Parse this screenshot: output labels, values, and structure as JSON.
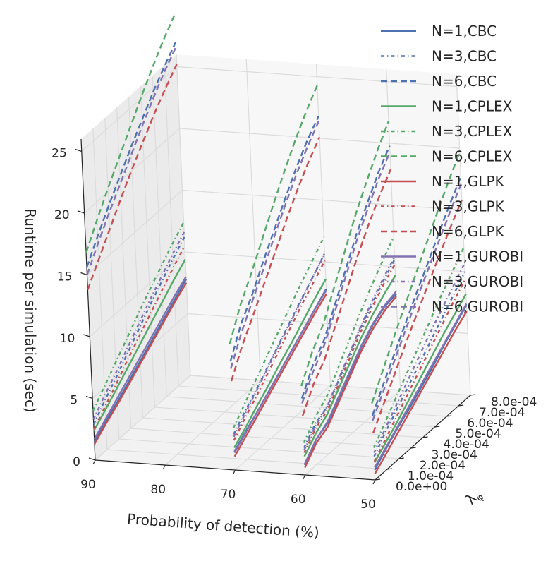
{
  "chart_data": {
    "type": "line",
    "projection": "3d",
    "title": "",
    "xlabel": "Probability of detection (%)",
    "ylabel": "λ_φ",
    "zlabel": "Runtime per simulation (sec)",
    "x_ticks": [
      "90",
      "80",
      "70",
      "60",
      "50"
    ],
    "y_ticks": [
      "0.0e+00",
      "1.0e-04",
      "2.0e-04",
      "3.0e-04",
      "4.0e-04",
      "5.0e-04",
      "6.0e-04",
      "7.0e-04",
      "8.0e-04"
    ],
    "z_ticks": [
      "0",
      "5",
      "10",
      "15",
      "20",
      "25"
    ],
    "xlim": [
      90,
      50
    ],
    "ylim": [
      0,
      0.0008
    ],
    "zlim": [
      0,
      26
    ],
    "grid": true,
    "legend_position": "top-right",
    "lambda_values": [
      0,
      0.0001,
      0.0002,
      0.0003,
      0.0004,
      0.0005,
      0.0006,
      0.0007,
      0.0008
    ],
    "series": [
      {
        "name": "N=1,CBC",
        "color": "#4c72b0",
        "dash": "solid",
        "groups": [
          {
            "pd": 90,
            "runtime": [
              1.5,
              2.3,
              3.0,
              3.8,
              4.6,
              5.4,
              6.2,
              7.0,
              7.8
            ]
          },
          {
            "pd": 70,
            "runtime": [
              1.5,
              2.3,
              3.0,
              3.8,
              4.6,
              5.4,
              6.2,
              7.0,
              7.8
            ]
          },
          {
            "pd": 60,
            "runtime": [
              0.8,
              2.0,
              2.5,
              3.7,
              4.9,
              6.1,
              7.0,
              7.6,
              7.8
            ]
          },
          {
            "pd": 50,
            "runtime": [
              0.8,
              1.7,
              2.5,
              3.2,
              4.0,
              4.8,
              5.7,
              6.5,
              7.3
            ]
          }
        ]
      },
      {
        "name": "N=3,CBC",
        "color": "#4c72b0",
        "dash": "dashdot",
        "groups": [
          {
            "pd": 90,
            "runtime": [
              2.9,
              4.0,
              5.0,
              6.1,
              7.2,
              8.3,
              9.3,
              10.3,
              11.2
            ]
          },
          {
            "pd": 70,
            "runtime": [
              2.9,
              3.9,
              4.8,
              5.8,
              6.8,
              7.8,
              8.8,
              9.7,
              10.7
            ]
          },
          {
            "pd": 60,
            "runtime": [
              2.2,
              3.3,
              3.8,
              5.0,
              6.3,
              7.6,
              8.7,
              9.7,
              10.6
            ]
          },
          {
            "pd": 50,
            "runtime": [
              1.9,
              3.0,
              4.0,
              5.0,
              6.0,
              7.0,
              8.0,
              9.0,
              10.0
            ]
          }
        ]
      },
      {
        "name": "N=6,CBC",
        "color": "#4c72b0",
        "dash": "dashed",
        "groups": [
          {
            "pd": 90,
            "runtime": [
              15.6,
              17.3,
              18.9,
              20.4,
              21.9,
              23.3,
              24.7,
              25.9,
              27.0
            ]
          },
          {
            "pd": 70,
            "runtime": [
              8.8,
              11.0,
              12.5,
              14.3,
              16.0,
              17.7,
              19.3,
              20.7,
              21.8
            ]
          },
          {
            "pd": 60,
            "runtime": [
              6.2,
              8.0,
              9.2,
              11.2,
              13.2,
              15.2,
              16.9,
              18.5,
              19.8
            ]
          },
          {
            "pd": 50,
            "runtime": [
              5.2,
              6.9,
              8.5,
              10.1,
              11.7,
              13.2,
              14.8,
              16.3,
              17.7
            ]
          }
        ]
      },
      {
        "name": "N=1,CPLEX",
        "color": "#55a868",
        "dash": "solid",
        "groups": [
          {
            "pd": 90,
            "runtime": [
              2.4,
              3.2,
              4.1,
              5.0,
              5.9,
              6.8,
              7.7,
              8.6,
              9.4
            ]
          },
          {
            "pd": 70,
            "runtime": [
              1.8,
              2.6,
              3.5,
              4.3,
              5.2,
              6.0,
              6.9,
              7.8,
              8.6
            ]
          },
          {
            "pd": 60,
            "runtime": [
              1.5,
              2.5,
              3.2,
              4.4,
              5.6,
              6.8,
              7.8,
              8.6,
              9.3
            ]
          },
          {
            "pd": 50,
            "runtime": [
              1.4,
              2.2,
              3.0,
              3.9,
              4.8,
              5.7,
              6.6,
              7.4,
              8.2
            ]
          }
        ]
      },
      {
        "name": "N=3,CPLEX",
        "color": "#55a868",
        "dash": "dashdot",
        "groups": [
          {
            "pd": 90,
            "runtime": [
              4.0,
              5.1,
              6.2,
              7.3,
              8.4,
              9.5,
              10.5,
              11.5,
              12.4
            ]
          },
          {
            "pd": 70,
            "runtime": [
              3.4,
              4.5,
              5.6,
              6.7,
              7.8,
              8.9,
              10.0,
              11.0,
              12.0
            ]
          },
          {
            "pd": 60,
            "runtime": [
              2.6,
              3.8,
              4.6,
              6.0,
              7.4,
              8.8,
              10.1,
              11.3,
              12.4
            ]
          },
          {
            "pd": 50,
            "runtime": [
              2.6,
              3.8,
              5.0,
              6.2,
              7.4,
              8.6,
              9.8,
              10.9,
              12.0
            ]
          }
        ]
      },
      {
        "name": "N=6,CPLEX",
        "color": "#55a868",
        "dash": "dashed",
        "groups": [
          {
            "pd": 90,
            "runtime": [
              16.8,
              18.6,
              20.3,
              21.9,
              23.5,
              25.1,
              26.6,
              28.0,
              29.2
            ]
          },
          {
            "pd": 70,
            "runtime": [
              10.2,
              12.5,
              14.2,
              16.1,
              18.0,
              19.8,
              21.5,
              23.0,
              24.3
            ]
          },
          {
            "pd": 60,
            "runtime": [
              7.2,
              9.1,
              10.5,
              12.6,
              14.7,
              16.8,
              18.6,
              20.3,
              21.8
            ]
          },
          {
            "pd": 50,
            "runtime": [
              6.2,
              8.0,
              9.8,
              11.5,
              13.2,
              14.9,
              16.6,
              18.2,
              19.7
            ]
          }
        ]
      },
      {
        "name": "N=1,GLPK",
        "color": "#c44e52",
        "dash": "solid",
        "groups": [
          {
            "pd": 90,
            "runtime": [
              1.3,
              2.1,
              2.8,
              3.6,
              4.4,
              5.2,
              6.0,
              6.8,
              7.5
            ]
          },
          {
            "pd": 70,
            "runtime": [
              1.1,
              1.9,
              2.7,
              3.5,
              4.3,
              5.1,
              5.9,
              6.7,
              7.4
            ]
          },
          {
            "pd": 60,
            "runtime": [
              0.6,
              1.7,
              2.2,
              3.4,
              4.6,
              5.8,
              6.7,
              7.3,
              7.6
            ]
          },
          {
            "pd": 50,
            "runtime": [
              0.5,
              1.3,
              2.1,
              2.9,
              3.7,
              4.5,
              5.3,
              6.1,
              6.8
            ]
          }
        ]
      },
      {
        "name": "N=3,GLPK",
        "color": "#c44e52",
        "dash": "dashdot",
        "groups": [
          {
            "pd": 90,
            "runtime": [
              2.5,
              3.5,
              4.5,
              5.6,
              6.6,
              7.6,
              8.6,
              9.6,
              10.5
            ]
          },
          {
            "pd": 70,
            "runtime": [
              2.4,
              3.4,
              4.3,
              5.3,
              6.3,
              7.3,
              8.3,
              9.2,
              10.1
            ]
          },
          {
            "pd": 60,
            "runtime": [
              1.8,
              2.9,
              3.5,
              4.7,
              6.0,
              7.3,
              8.4,
              9.4,
              10.2
            ]
          },
          {
            "pd": 50,
            "runtime": [
              1.5,
              2.5,
              3.5,
              4.5,
              5.5,
              6.5,
              7.5,
              8.5,
              9.4
            ]
          }
        ]
      },
      {
        "name": "N=6,GLPK",
        "color": "#c44e52",
        "dash": "dashed",
        "groups": [
          {
            "pd": 90,
            "runtime": [
              13.8,
              15.4,
              17.0,
              18.6,
              20.1,
              21.5,
              22.9,
              24.1,
              25.2
            ]
          },
          {
            "pd": 70,
            "runtime": [
              7.2,
              9.2,
              10.8,
              12.5,
              14.2,
              15.9,
              17.5,
              18.9,
              20.1
            ]
          },
          {
            "pd": 60,
            "runtime": [
              4.8,
              6.5,
              7.7,
              9.6,
              11.5,
              13.4,
              15.1,
              16.6,
              17.9
            ]
          },
          {
            "pd": 50,
            "runtime": [
              3.8,
              5.4,
              7.0,
              8.6,
              10.1,
              11.6,
              13.1,
              14.5,
              15.8
            ]
          }
        ]
      },
      {
        "name": "N=1,GUROBI",
        "color": "#8172b2",
        "dash": "solid",
        "groups": [
          {
            "pd": 90,
            "runtime": [
              1.7,
              2.5,
              3.3,
              4.1,
              4.9,
              5.7,
              6.5,
              7.3,
              8.0
            ]
          },
          {
            "pd": 70,
            "runtime": [
              1.4,
              2.2,
              3.0,
              3.8,
              4.6,
              5.4,
              6.2,
              7.0,
              7.7
            ]
          },
          {
            "pd": 60,
            "runtime": [
              0.9,
              2.0,
              2.6,
              3.8,
              5.0,
              6.2,
              7.1,
              7.7,
              8.0
            ]
          },
          {
            "pd": 50,
            "runtime": [
              1.0,
              1.8,
              2.6,
              3.4,
              4.2,
              5.0,
              5.8,
              6.6,
              7.4
            ]
          }
        ]
      },
      {
        "name": "N=3,GUROBI",
        "color": "#8172b2",
        "dash": "dashdot",
        "groups": [
          {
            "pd": 90,
            "runtime": [
              3.3,
              4.4,
              5.4,
              6.5,
              7.6,
              8.7,
              9.7,
              10.7,
              11.6
            ]
          },
          {
            "pd": 70,
            "runtime": [
              2.7,
              3.7,
              4.7,
              5.7,
              6.7,
              7.7,
              8.7,
              9.7,
              10.6
            ]
          },
          {
            "pd": 60,
            "runtime": [
              2.0,
              3.1,
              3.8,
              5.1,
              6.4,
              7.7,
              8.9,
              9.9,
              10.8
            ]
          },
          {
            "pd": 50,
            "runtime": [
              2.2,
              3.3,
              4.4,
              5.5,
              6.6,
              7.7,
              8.7,
              9.7,
              10.7
            ]
          }
        ]
      },
      {
        "name": "N=6,GUROBI",
        "color": "#8172b2",
        "dash": "dashed",
        "groups": [
          {
            "pd": 90,
            "runtime": [
              15.0,
              16.7,
              18.3,
              19.8,
              21.3,
              22.8,
              24.2,
              25.5,
              26.6
            ]
          },
          {
            "pd": 70,
            "runtime": [
              8.2,
              10.3,
              12.0,
              13.7,
              15.5,
              17.2,
              18.8,
              20.2,
              21.4
            ]
          },
          {
            "pd": 60,
            "runtime": [
              5.8,
              7.5,
              8.8,
              10.7,
              12.7,
              14.7,
              16.4,
              18.0,
              19.3
            ]
          },
          {
            "pd": 50,
            "runtime": [
              4.8,
              6.4,
              8.0,
              9.6,
              11.2,
              12.7,
              14.2,
              15.7,
              17.1
            ]
          }
        ]
      }
    ]
  }
}
